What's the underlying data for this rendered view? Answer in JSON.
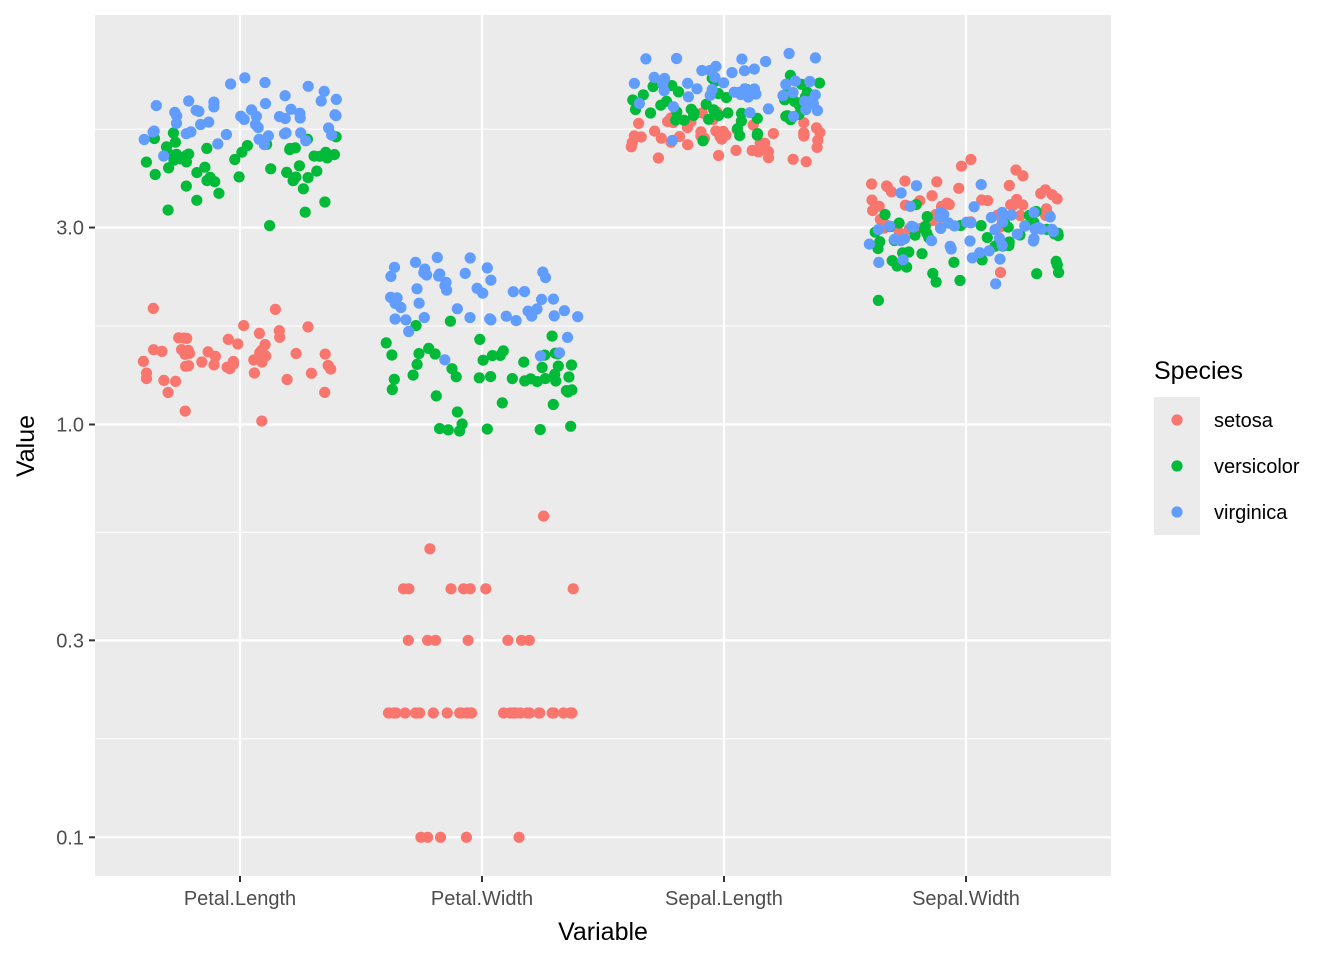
{
  "chart_data": {
    "type": "scatter",
    "subtype": "jitter",
    "title": "",
    "xlabel": "Variable",
    "ylabel": "Value",
    "y_scale": "log10",
    "ylim": [
      0.078,
      9.1
    ],
    "y_ticks": [
      {
        "value": 0.1,
        "label": "0.1"
      },
      {
        "value": 0.3,
        "label": "0.3"
      },
      {
        "value": 1.0,
        "label": "1.0"
      },
      {
        "value": 3.0,
        "label": "3.0"
      }
    ],
    "categories": [
      "Petal.Length",
      "Petal.Width",
      "Sepal.Length",
      "Sepal.Width"
    ],
    "grid": true,
    "legend": {
      "title": "Species",
      "position": "right"
    },
    "series": [
      {
        "name": "setosa",
        "color": "#F8766D",
        "points": {
          "Petal.Length": [
            1.4,
            1.4,
            1.3,
            1.5,
            1.4,
            1.7,
            1.4,
            1.5,
            1.4,
            1.5,
            1.5,
            1.6,
            1.4,
            1.1,
            1.2,
            1.5,
            1.3,
            1.4,
            1.7,
            1.5,
            1.7,
            1.5,
            1.0,
            1.7,
            1.9,
            1.6,
            1.6,
            1.5,
            1.4,
            1.6,
            1.6,
            1.5,
            1.5,
            1.4,
            1.5,
            1.2,
            1.3,
            1.4,
            1.3,
            1.5,
            1.3,
            1.3,
            1.3,
            1.6,
            1.9,
            1.4,
            1.6,
            1.4,
            1.5,
            1.4
          ],
          "Petal.Width": [
            0.2,
            0.2,
            0.2,
            0.2,
            0.2,
            0.4,
            0.3,
            0.2,
            0.2,
            0.1,
            0.2,
            0.2,
            0.1,
            0.1,
            0.2,
            0.4,
            0.4,
            0.3,
            0.3,
            0.3,
            0.2,
            0.4,
            0.2,
            0.5,
            0.2,
            0.2,
            0.4,
            0.2,
            0.2,
            0.2,
            0.2,
            0.4,
            0.1,
            0.2,
            0.2,
            0.2,
            0.2,
            0.1,
            0.2,
            0.2,
            0.3,
            0.3,
            0.2,
            0.6,
            0.4,
            0.3,
            0.2,
            0.2,
            0.2,
            0.2
          ],
          "Sepal.Length": [
            5.1,
            4.9,
            4.7,
            4.6,
            5.0,
            5.4,
            4.6,
            5.0,
            4.4,
            4.9,
            5.4,
            4.8,
            4.8,
            4.3,
            5.8,
            5.7,
            5.4,
            5.1,
            5.7,
            5.1,
            5.4,
            5.1,
            4.6,
            5.1,
            4.8,
            5.0,
            5.0,
            5.2,
            5.2,
            4.7,
            4.8,
            5.4,
            5.2,
            5.5,
            4.9,
            5.0,
            5.5,
            4.9,
            4.4,
            5.1,
            5.0,
            4.5,
            4.4,
            5.0,
            5.1,
            4.8,
            5.1,
            4.6,
            5.3,
            5.0
          ],
          "Sepal.Width": [
            3.5,
            3.0,
            3.2,
            3.1,
            3.6,
            3.9,
            3.4,
            3.4,
            2.9,
            3.1,
            3.7,
            3.4,
            3.0,
            3.0,
            4.0,
            4.4,
            3.9,
            3.5,
            3.8,
            3.8,
            3.4,
            3.7,
            3.6,
            3.3,
            3.4,
            3.0,
            3.4,
            3.5,
            3.4,
            3.2,
            3.1,
            3.4,
            4.1,
            4.2,
            3.1,
            3.2,
            3.5,
            3.6,
            3.0,
            3.4,
            3.5,
            2.3,
            3.2,
            3.5,
            3.8,
            3.0,
            3.8,
            3.2,
            3.7,
            3.3
          ]
        }
      },
      {
        "name": "versicolor",
        "color": "#00BA38",
        "points": {
          "Petal.Length": [
            4.7,
            4.5,
            4.9,
            4.0,
            4.6,
            4.5,
            4.7,
            3.3,
            4.6,
            3.9,
            3.5,
            4.2,
            4.0,
            4.7,
            3.6,
            4.4,
            4.5,
            4.1,
            4.5,
            3.9,
            4.8,
            4.0,
            4.9,
            4.7,
            4.3,
            4.4,
            4.8,
            5.0,
            4.5,
            3.5,
            3.8,
            3.7,
            3.9,
            5.1,
            4.5,
            4.5,
            4.7,
            4.4,
            4.1,
            4.0,
            4.4,
            4.6,
            4.0,
            3.3,
            4.2,
            4.2,
            4.2,
            4.3,
            3.0,
            4.1
          ],
          "Petal.Width": [
            1.4,
            1.5,
            1.5,
            1.3,
            1.5,
            1.3,
            1.6,
            1.0,
            1.3,
            1.4,
            1.0,
            1.5,
            1.0,
            1.4,
            1.3,
            1.4,
            1.5,
            1.0,
            1.5,
            1.1,
            1.8,
            1.3,
            1.5,
            1.2,
            1.3,
            1.4,
            1.4,
            1.7,
            1.5,
            1.0,
            1.1,
            1.0,
            1.2,
            1.6,
            1.5,
            1.6,
            1.5,
            1.3,
            1.3,
            1.3,
            1.2,
            1.4,
            1.2,
            1.0,
            1.3,
            1.2,
            1.3,
            1.3,
            1.1,
            1.3
          ],
          "Sepal.Length": [
            7.0,
            6.4,
            6.9,
            5.5,
            6.5,
            5.7,
            6.3,
            4.9,
            6.6,
            5.2,
            5.0,
            5.9,
            6.0,
            6.1,
            5.6,
            6.7,
            5.6,
            5.8,
            6.2,
            5.6,
            5.9,
            6.1,
            6.3,
            6.1,
            6.4,
            6.6,
            6.8,
            6.7,
            6.0,
            5.7,
            5.5,
            5.5,
            5.8,
            6.0,
            5.4,
            6.0,
            6.7,
            6.3,
            5.6,
            5.5,
            5.5,
            6.1,
            5.8,
            5.0,
            5.6,
            5.7,
            5.7,
            6.2,
            5.1,
            5.7
          ],
          "Sepal.Width": [
            3.2,
            3.2,
            3.1,
            2.3,
            2.8,
            2.8,
            3.3,
            2.4,
            2.9,
            2.7,
            2.0,
            3.0,
            2.2,
            2.9,
            2.9,
            3.1,
            3.0,
            2.7,
            2.2,
            2.5,
            3.2,
            2.8,
            2.5,
            2.8,
            2.9,
            3.0,
            2.8,
            3.0,
            2.9,
            2.6,
            2.4,
            2.4,
            2.7,
            2.7,
            3.0,
            3.4,
            3.1,
            2.3,
            3.0,
            2.5,
            2.6,
            3.0,
            2.6,
            2.3,
            2.7,
            3.0,
            2.9,
            2.9,
            2.5,
            2.8
          ]
        }
      },
      {
        "name": "virginica",
        "color": "#619CFF",
        "points": {
          "Petal.Length": [
            6.0,
            5.1,
            5.9,
            5.6,
            5.8,
            6.6,
            4.5,
            6.3,
            5.8,
            6.1,
            5.1,
            5.3,
            5.5,
            5.0,
            5.1,
            5.3,
            5.5,
            6.7,
            6.9,
            5.0,
            5.7,
            4.9,
            6.7,
            4.9,
            5.7,
            6.0,
            4.8,
            4.9,
            5.6,
            5.8,
            6.1,
            6.4,
            5.6,
            5.1,
            5.6,
            6.1,
            5.6,
            5.5,
            4.8,
            5.4,
            5.6,
            5.1,
            5.1,
            5.9,
            5.7,
            5.2,
            5.0,
            5.2,
            5.4,
            5.1
          ],
          "Petal.Width": [
            2.5,
            1.9,
            2.1,
            1.8,
            2.2,
            2.1,
            1.7,
            1.8,
            1.8,
            2.5,
            2.0,
            1.9,
            2.1,
            2.0,
            2.4,
            2.3,
            1.8,
            2.2,
            2.3,
            1.5,
            2.3,
            2.0,
            2.0,
            1.8,
            2.1,
            1.8,
            1.8,
            1.8,
            2.1,
            1.6,
            1.9,
            2.0,
            2.2,
            1.5,
            1.4,
            2.3,
            2.4,
            1.8,
            1.8,
            2.1,
            2.4,
            2.3,
            1.9,
            2.3,
            2.5,
            2.3,
            1.9,
            2.0,
            2.3,
            1.8
          ],
          "Sepal.Length": [
            6.3,
            5.8,
            7.1,
            6.3,
            6.5,
            7.6,
            4.9,
            7.3,
            6.7,
            7.2,
            6.5,
            6.4,
            6.8,
            5.7,
            5.8,
            6.4,
            6.5,
            7.7,
            7.7,
            6.0,
            6.9,
            5.6,
            7.7,
            6.3,
            6.7,
            7.2,
            6.2,
            6.1,
            6.4,
            7.2,
            7.4,
            7.9,
            6.4,
            6.3,
            6.1,
            7.7,
            6.3,
            6.4,
            6.0,
            6.9,
            6.7,
            6.9,
            5.8,
            6.8,
            6.7,
            6.7,
            6.3,
            6.5,
            6.2,
            5.9
          ],
          "Sepal.Width": [
            3.3,
            2.7,
            3.0,
            2.9,
            3.0,
            3.0,
            2.5,
            2.9,
            2.5,
            3.6,
            3.2,
            2.7,
            3.0,
            2.5,
            2.8,
            3.2,
            3.0,
            3.8,
            2.6,
            2.2,
            3.2,
            2.8,
            2.8,
            2.7,
            3.3,
            3.2,
            2.8,
            3.0,
            2.8,
            3.0,
            2.8,
            3.8,
            2.8,
            2.8,
            2.6,
            3.0,
            3.4,
            3.1,
            3.0,
            3.1,
            3.1,
            3.1,
            2.7,
            3.2,
            3.3,
            3.0,
            2.5,
            3.0,
            3.4,
            3.0
          ]
        }
      }
    ]
  }
}
